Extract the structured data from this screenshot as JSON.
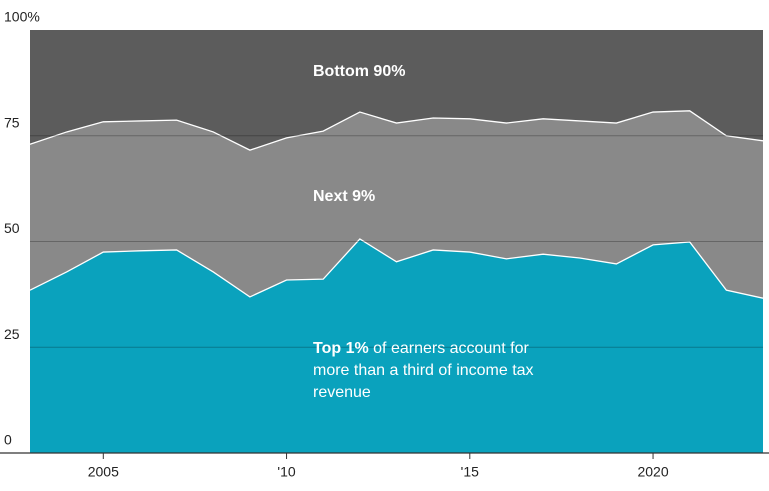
{
  "chart_data": {
    "type": "stacked_area",
    "x": [
      2003,
      2004,
      2005,
      2006,
      2007,
      2008,
      2009,
      2010,
      2011,
      2012,
      2013,
      2014,
      2015,
      2016,
      2017,
      2018,
      2019,
      2020,
      2021,
      2022,
      2023
    ],
    "series": [
      {
        "name": "Top 1%",
        "color": "#0aa2bd",
        "values": [
          38.5,
          42.8,
          47.5,
          47.8,
          48.0,
          42.8,
          36.9,
          40.9,
          41.1,
          50.6,
          45.2,
          48.0,
          47.5,
          45.9,
          47.0,
          46.1,
          44.7,
          49.2,
          49.9,
          38.5,
          36.6
        ]
      },
      {
        "name": "Next 9%",
        "color": "#898989",
        "values": [
          34.5,
          33.1,
          30.8,
          30.7,
          30.7,
          33.1,
          34.7,
          33.6,
          35.0,
          30.0,
          32.8,
          31.2,
          31.5,
          32.1,
          32.0,
          32.4,
          33.3,
          31.4,
          31.0,
          36.5,
          37.2
        ]
      },
      {
        "name": "Bottom 90%",
        "color": "#5c5c5c",
        "values": [
          27.0,
          24.1,
          21.7,
          21.5,
          21.3,
          24.1,
          28.4,
          25.5,
          23.9,
          19.4,
          22.0,
          20.8,
          21.0,
          22.0,
          21.0,
          21.5,
          22.0,
          19.4,
          19.1,
          25.0,
          26.2
        ]
      }
    ],
    "annotation": "of earners account for more than a third of income tax revenue",
    "xlim": [
      2003,
      2023
    ],
    "xticks": [
      2005,
      {
        "value": 2010,
        "label": "'10"
      },
      {
        "value": 2015,
        "label": "'15"
      },
      2020
    ],
    "ylim": [
      0,
      100
    ],
    "yticks": [
      0,
      25,
      50,
      75,
      {
        "value": 100,
        "label": "100%"
      }
    ],
    "grid": true
  }
}
